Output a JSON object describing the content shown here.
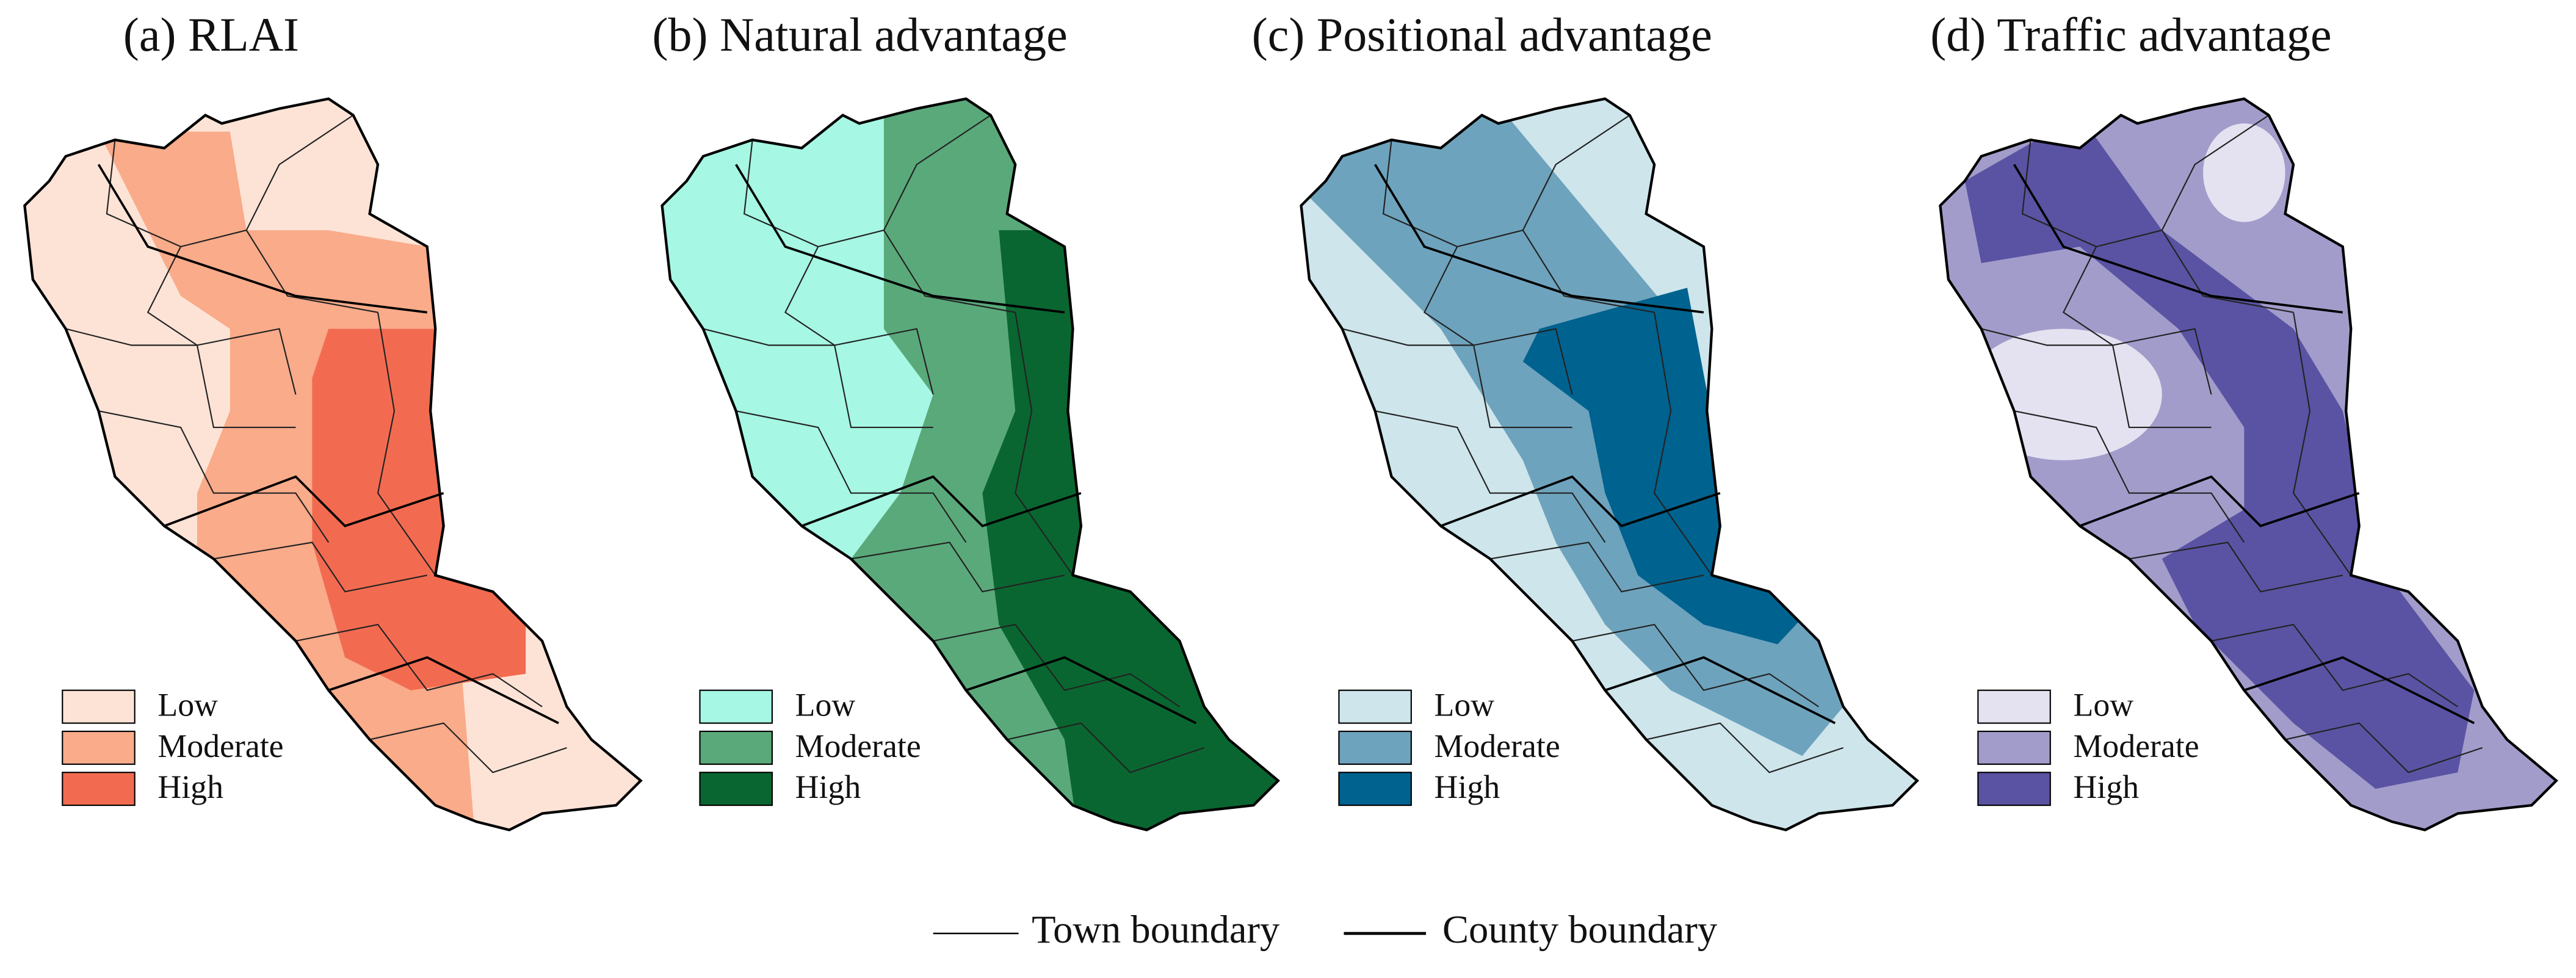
{
  "panels": [
    {
      "title": "(a) RLAI",
      "legend": [
        {
          "label": "Low",
          "color": "#fde3d6"
        },
        {
          "label": "Moderate",
          "color": "#f9ab8a"
        },
        {
          "label": "High",
          "color": "#f26b51"
        }
      ]
    },
    {
      "title": "(b) Natural advantage",
      "legend": [
        {
          "label": "Low",
          "color": "#a6f7e3"
        },
        {
          "label": "Moderate",
          "color": "#5aa97a"
        },
        {
          "label": "High",
          "color": "#0a6630"
        }
      ]
    },
    {
      "title": "(c) Positional advantage",
      "legend": [
        {
          "label": "Low",
          "color": "#cde5eb"
        },
        {
          "label": "Moderate",
          "color": "#6ea3bd"
        },
        {
          "label": "High",
          "color": "#00628f"
        }
      ]
    },
    {
      "title": "(d) Traffic advantage",
      "legend": [
        {
          "label": "Low",
          "color": "#e4e2f0"
        },
        {
          "label": "Moderate",
          "color": "#a29ccb"
        },
        {
          "label": "High",
          "color": "#5a53a3"
        }
      ]
    }
  ],
  "boundary_legend": [
    "Town boundary",
    "County boundary"
  ]
}
